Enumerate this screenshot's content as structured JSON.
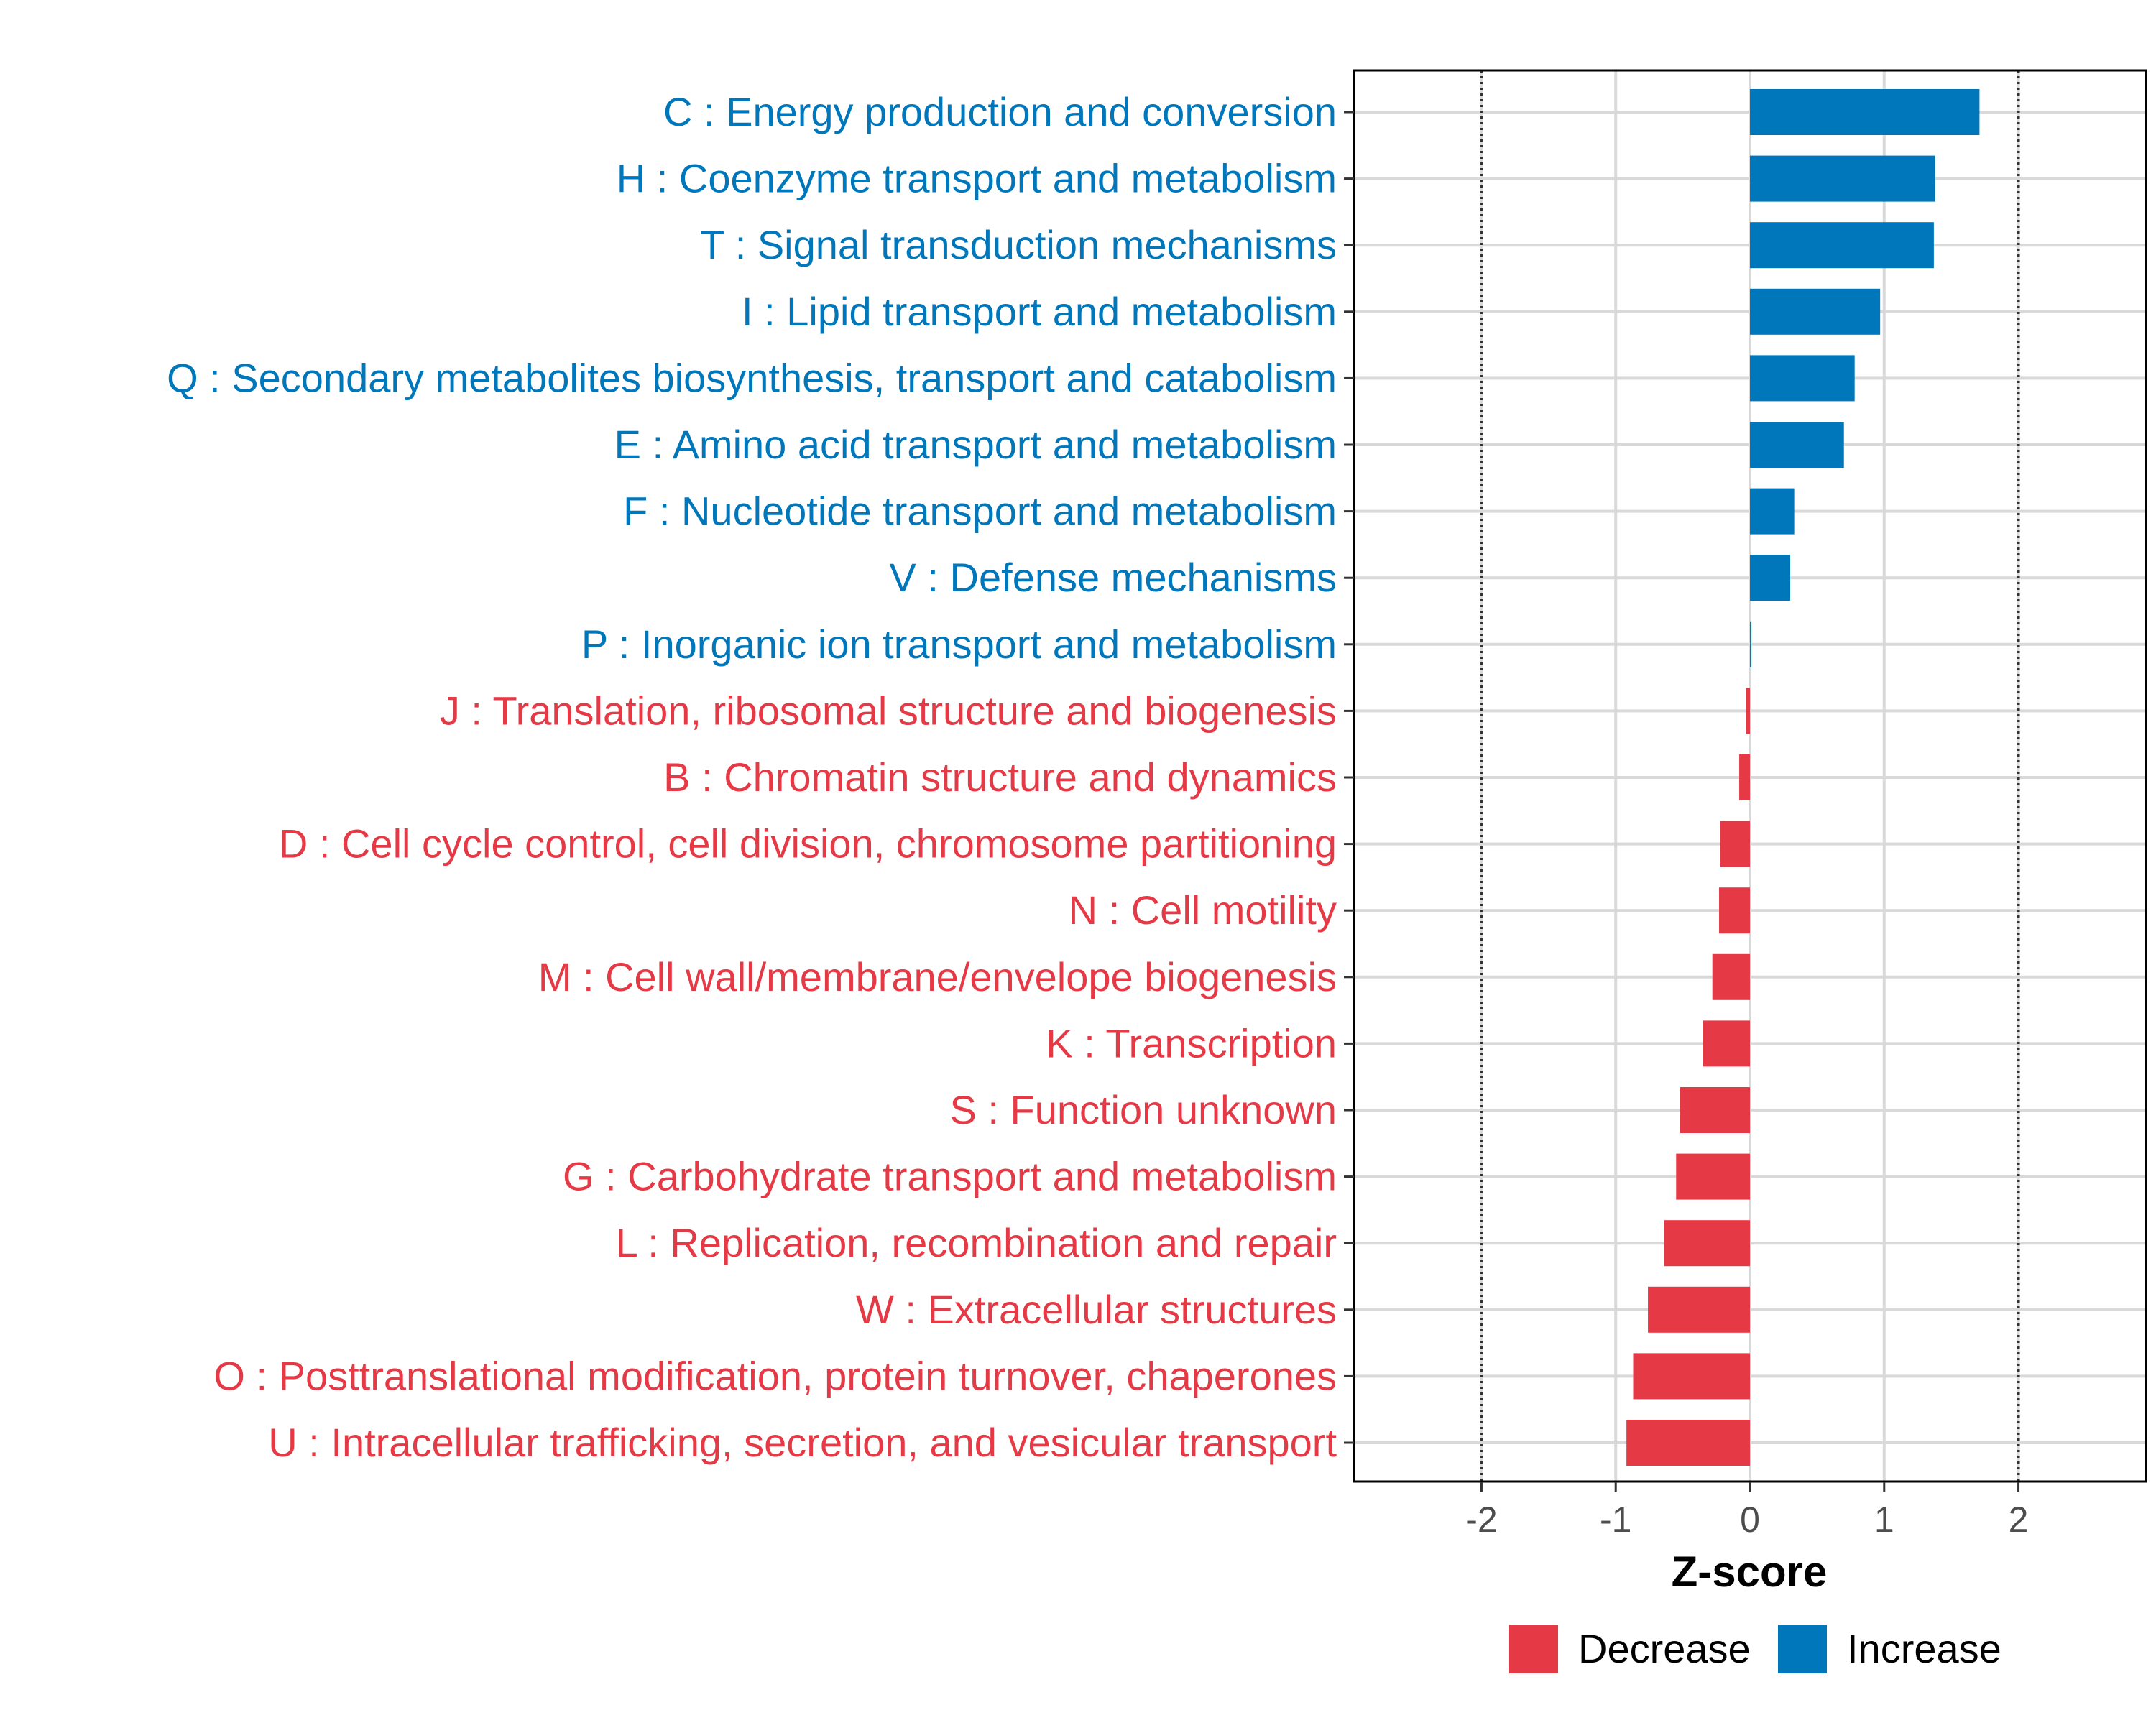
{
  "chart_data": {
    "type": "bar",
    "orientation": "horizontal",
    "title": "",
    "xlabel": "Z-score",
    "ylabel": "",
    "xlim": [
      -2.95,
      2.95
    ],
    "xticks": [
      -2,
      -1,
      0,
      1,
      2
    ],
    "xtick_labels": [
      "-2",
      "-1",
      "0",
      "1",
      "2"
    ],
    "reference_lines": [
      -2,
      2
    ],
    "grid": true,
    "legend_position": "bottom",
    "colors": {
      "Decrease": "#E63946",
      "Increase": "#0077BB"
    },
    "legend": [
      {
        "label": "Decrease",
        "color": "#E63946"
      },
      {
        "label": "Increase",
        "color": "#0077BB"
      }
    ],
    "categories": [
      "C : Energy production and conversion",
      "H : Coenzyme transport and metabolism",
      "T : Signal transduction mechanisms",
      "I : Lipid transport and metabolism",
      "Q : Secondary metabolites biosynthesis, transport and catabolism",
      "E : Amino acid transport and metabolism",
      "F : Nucleotide transport and metabolism",
      "V : Defense mechanisms",
      "P : Inorganic ion transport and metabolism",
      "J : Translation, ribosomal structure and biogenesis",
      "B : Chromatin structure and dynamics",
      "D : Cell cycle control, cell division, chromosome partitioning",
      "N : Cell motility",
      "M : Cell wall/membrane/envelope biogenesis",
      "K : Transcription",
      "S : Function unknown",
      "G : Carbohydrate transport and metabolism",
      "L : Replication, recombination and repair",
      "W : Extracellular structures",
      "O : Posttranslational modification, protein turnover, chaperones",
      "U : Intracellular trafficking, secretion, and vesicular transport"
    ],
    "values": [
      1.71,
      1.38,
      1.37,
      0.97,
      0.78,
      0.7,
      0.33,
      0.3,
      0.01,
      -0.03,
      -0.08,
      -0.22,
      -0.23,
      -0.28,
      -0.35,
      -0.52,
      -0.55,
      -0.64,
      -0.76,
      -0.87,
      -0.92
    ],
    "groups": [
      "Increase",
      "Increase",
      "Increase",
      "Increase",
      "Increase",
      "Increase",
      "Increase",
      "Increase",
      "Increase",
      "Decrease",
      "Decrease",
      "Decrease",
      "Decrease",
      "Decrease",
      "Decrease",
      "Decrease",
      "Decrease",
      "Decrease",
      "Decrease",
      "Decrease",
      "Decrease"
    ]
  }
}
